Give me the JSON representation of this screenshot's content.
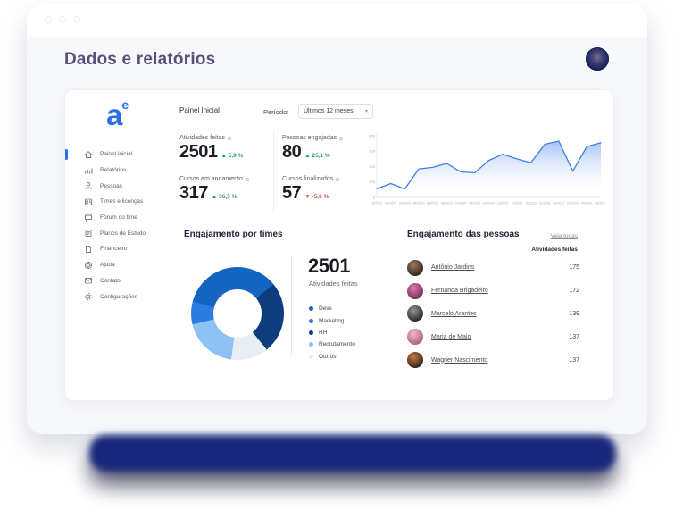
{
  "header": {
    "title": "Dados e relatórios"
  },
  "logo": {
    "text": "a",
    "sup": "e"
  },
  "topbar": {
    "panel_label": "Painel Inicial",
    "period_label": "Período:",
    "period_value": "Últimos 12 meses",
    "caret": "▾"
  },
  "sidebar": {
    "items": [
      {
        "label": "Painel inicial",
        "icon": "home-icon",
        "active": true
      },
      {
        "label": "Relatórios",
        "icon": "bar-chart-icon",
        "active": false
      },
      {
        "label": "Pessoas",
        "icon": "person-icon",
        "active": false
      },
      {
        "label": "Times e licenças",
        "icon": "id-badge-icon",
        "active": false
      },
      {
        "label": "Fórum do time",
        "icon": "chat-icon",
        "active": false
      },
      {
        "label": "Planos de Estudo",
        "icon": "document-icon",
        "active": false
      },
      {
        "label": "Financeiro",
        "icon": "file-icon",
        "active": false
      },
      {
        "label": "Ajuda",
        "icon": "lifebuoy-icon",
        "active": false
      },
      {
        "label": "Contato",
        "icon": "envelope-icon",
        "active": false
      },
      {
        "label": "Configurações",
        "icon": "gear-icon",
        "active": false
      }
    ]
  },
  "kpis": [
    {
      "label": "Atividades feitas",
      "value": "2501",
      "delta": "▲ 5,9 %",
      "delta_color": "#27A163"
    },
    {
      "label": "Pessoas engajadas",
      "value": "80",
      "delta": "▲ 25,1 %",
      "delta_color": "#27A163"
    },
    {
      "label": "Cursos em andamento",
      "value": "317",
      "delta": "▲ 36,5 %",
      "delta_color": "#27A163"
    },
    {
      "label": "Cursos finalizados",
      "value": "57",
      "delta": "▼ -5,6 %",
      "delta_color": "#D6453D"
    }
  ],
  "chart_data": [
    {
      "type": "area",
      "title": "",
      "x": [
        "01/2020",
        "02/2020",
        "03/2020",
        "04/2020",
        "05/2020",
        "06/2020",
        "07/2020",
        "08/2020",
        "09/2020",
        "10/2020",
        "11/2020",
        "12/2020",
        "01/2021",
        "02/2021",
        "03/2021",
        "04/2021",
        "05/2021"
      ],
      "values": [
        55,
        90,
        55,
        185,
        195,
        220,
        165,
        160,
        240,
        280,
        250,
        225,
        345,
        365,
        170,
        330,
        355
      ],
      "ylim": [
        0,
        400
      ],
      "yticks": [
        400,
        300,
        200,
        100,
        0
      ],
      "line_color": "#3D7EE8",
      "fill_top": "rgba(77,133,235,0.50)",
      "fill_bottom": "rgba(255,255,255,0)",
      "grid": false,
      "legend_position": "none"
    },
    {
      "type": "donut",
      "title": "Engajamento por times",
      "center_value": "2501",
      "center_label": "Atividades feitas",
      "start_angle_deg": -75,
      "segments": [
        {
          "name": "Devs",
          "value": 35,
          "color": "#1565C0"
        },
        {
          "name": "RH",
          "value": 25,
          "color": "#0D3D7C"
        },
        {
          "name": "Outros",
          "value": 13,
          "color": "#E9EEF5"
        },
        {
          "name": "Recrutamento",
          "value": 19,
          "color": "#8FC1F5"
        },
        {
          "name": "Marketing",
          "value": 8,
          "color": "#2D7DE1"
        }
      ],
      "legend": [
        {
          "name": "Devs",
          "color": "#1565C0"
        },
        {
          "name": "Marketing",
          "color": "#2D7DE1"
        },
        {
          "name": "RH",
          "color": "#0D3D7C"
        },
        {
          "name": "Recrutamento",
          "color": "#8FC1F5"
        },
        {
          "name": "Outros",
          "color": "#E9EEF5"
        }
      ],
      "legend_position": "right"
    }
  ],
  "people": {
    "title": "Engajamento das pessoas",
    "see_all": "Veja todas",
    "column_header": "Atividades feitas",
    "rows": [
      {
        "name": "Antônio Jardins",
        "value": "175",
        "avatar_colors": [
          "#9a7a60",
          "#2c211a"
        ]
      },
      {
        "name": "Fernanda Brigadeiro",
        "value": "172",
        "avatar_colors": [
          "#e07bb0",
          "#6e2a58"
        ]
      },
      {
        "name": "Marcelo Arantes",
        "value": "139",
        "avatar_colors": [
          "#8f9298",
          "#25262b"
        ]
      },
      {
        "name": "Maria de Maio",
        "value": "137",
        "avatar_colors": [
          "#f0b7c8",
          "#a95f77"
        ]
      },
      {
        "name": "Wagner Nascimento",
        "value": "137",
        "avatar_colors": [
          "#c8773d",
          "#2b211d"
        ]
      }
    ]
  },
  "colors": {
    "accent": "#2E6FE8",
    "title": "#565178",
    "positive": "#27A163",
    "negative": "#D6453D",
    "base_shadow": "#18277B"
  }
}
